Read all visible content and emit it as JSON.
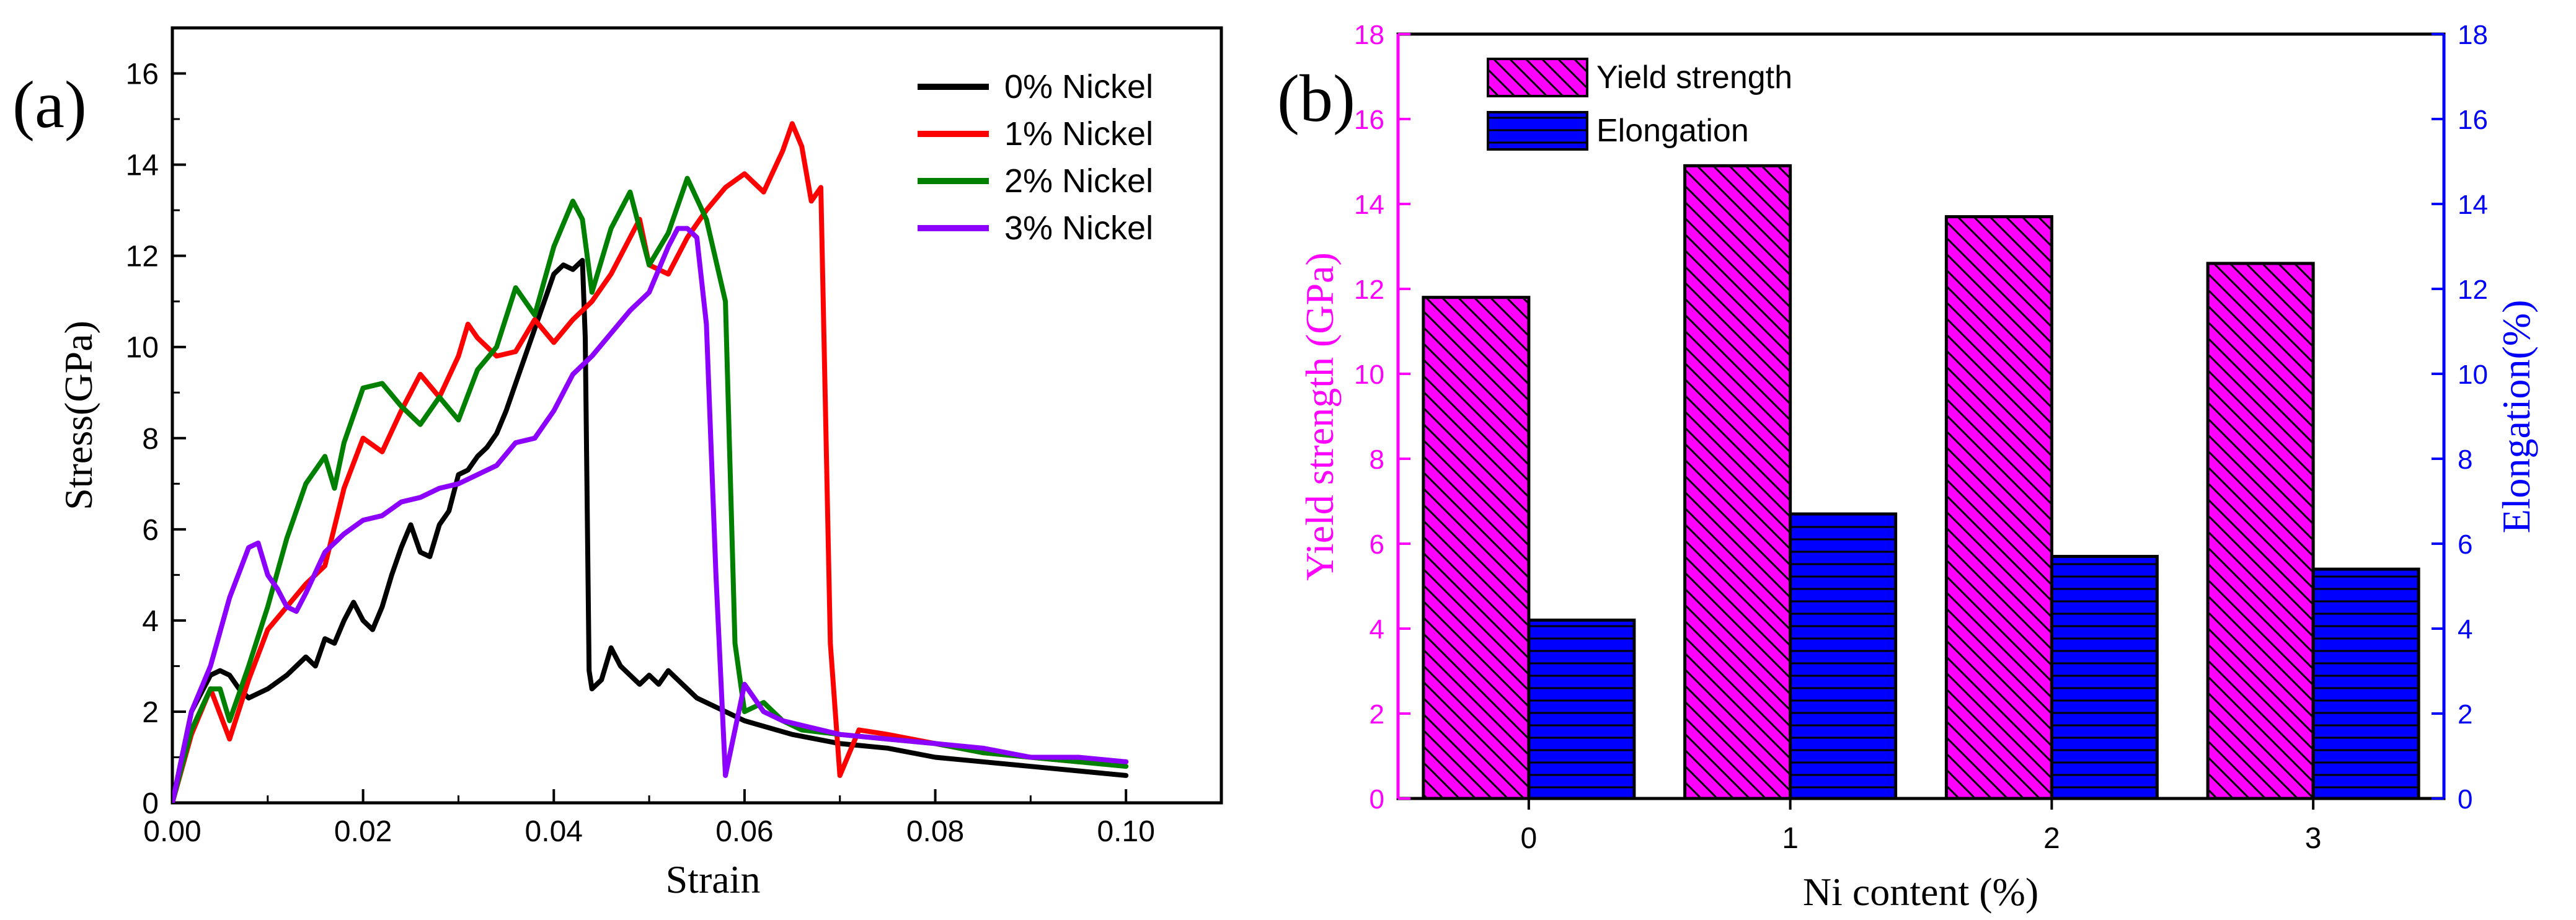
{
  "panel_a": {
    "label": "(a)",
    "chart_data": {
      "type": "line",
      "title": "",
      "xlabel": "Strain",
      "ylabel": "Stress(GPa)",
      "xlim": [
        0,
        0.11
      ],
      "ylim": [
        0,
        17
      ],
      "xticks": [
        "0.00",
        "0.02",
        "0.04",
        "0.06",
        "0.08",
        "0.10"
      ],
      "xtick_values": [
        0,
        0.02,
        0.04,
        0.06,
        0.08,
        0.1
      ],
      "yticks": [
        "0",
        "2",
        "4",
        "6",
        "8",
        "10",
        "12",
        "14",
        "16"
      ],
      "ytick_values": [
        0,
        2,
        4,
        6,
        8,
        10,
        12,
        14,
        16
      ],
      "legend_position": "top-right",
      "series": [
        {
          "name": "0% Nickel",
          "color": "#000000",
          "x": [
            0,
            0.002,
            0.004,
            0.005,
            0.006,
            0.007,
            0.008,
            0.01,
            0.012,
            0.014,
            0.015,
            0.016,
            0.017,
            0.018,
            0.019,
            0.02,
            0.021,
            0.022,
            0.023,
            0.024,
            0.025,
            0.026,
            0.027,
            0.028,
            0.029,
            0.03,
            0.031,
            0.032,
            0.033,
            0.034,
            0.035,
            0.036,
            0.037,
            0.038,
            0.039,
            0.04,
            0.041,
            0.042,
            0.043,
            0.0433,
            0.0437,
            0.044,
            0.045,
            0.046,
            0.047,
            0.048,
            0.049,
            0.05,
            0.051,
            0.052,
            0.053,
            0.054,
            0.055,
            0.056,
            0.058,
            0.06,
            0.065,
            0.07,
            0.075,
            0.08,
            0.085,
            0.09,
            0.095,
            0.1
          ],
          "y": [
            0,
            2.0,
            2.8,
            2.9,
            2.8,
            2.5,
            2.3,
            2.5,
            2.8,
            3.2,
            3.0,
            3.6,
            3.5,
            4.0,
            4.4,
            4.0,
            3.8,
            4.3,
            5.0,
            5.6,
            6.1,
            5.5,
            5.4,
            6.1,
            6.4,
            7.2,
            7.3,
            7.6,
            7.8,
            8.1,
            8.6,
            9.2,
            9.8,
            10.4,
            11.0,
            11.6,
            11.8,
            11.7,
            11.9,
            10.2,
            2.9,
            2.5,
            2.7,
            3.4,
            3.0,
            2.8,
            2.6,
            2.8,
            2.6,
            2.9,
            2.7,
            2.5,
            2.3,
            2.2,
            2.0,
            1.8,
            1.5,
            1.3,
            1.2,
            1.0,
            0.9,
            0.8,
            0.7,
            0.6
          ]
        },
        {
          "name": "1% Nickel",
          "color": "#ff0000",
          "x": [
            0,
            0.002,
            0.004,
            0.006,
            0.008,
            0.01,
            0.012,
            0.014,
            0.016,
            0.018,
            0.02,
            0.022,
            0.024,
            0.026,
            0.028,
            0.03,
            0.031,
            0.032,
            0.034,
            0.036,
            0.038,
            0.04,
            0.042,
            0.044,
            0.046,
            0.048,
            0.049,
            0.05,
            0.052,
            0.054,
            0.056,
            0.058,
            0.06,
            0.062,
            0.064,
            0.065,
            0.066,
            0.067,
            0.068,
            0.069,
            0.07,
            0.072,
            0.075,
            0.08,
            0.085,
            0.09,
            0.095,
            0.1
          ],
          "y": [
            0,
            1.5,
            2.5,
            1.4,
            2.7,
            3.8,
            4.3,
            4.8,
            5.2,
            6.9,
            8.0,
            7.7,
            8.6,
            9.4,
            8.9,
            9.8,
            10.5,
            10.2,
            9.8,
            9.9,
            10.6,
            10.1,
            10.6,
            11.0,
            11.6,
            12.4,
            12.8,
            11.8,
            11.6,
            12.4,
            13.0,
            13.5,
            13.8,
            13.4,
            14.3,
            14.9,
            14.4,
            13.2,
            13.5,
            3.5,
            0.6,
            1.6,
            1.5,
            1.3,
            1.1,
            1.0,
            0.9,
            0.9
          ]
        },
        {
          "name": "2% Nickel",
          "color": "#008000",
          "x": [
            0,
            0.002,
            0.004,
            0.005,
            0.006,
            0.008,
            0.01,
            0.012,
            0.014,
            0.016,
            0.017,
            0.018,
            0.02,
            0.022,
            0.024,
            0.026,
            0.028,
            0.03,
            0.032,
            0.034,
            0.036,
            0.038,
            0.04,
            0.042,
            0.043,
            0.044,
            0.046,
            0.048,
            0.05,
            0.052,
            0.054,
            0.056,
            0.058,
            0.059,
            0.06,
            0.062,
            0.064,
            0.066,
            0.07,
            0.075,
            0.08,
            0.085,
            0.09,
            0.095,
            0.1
          ],
          "y": [
            0,
            1.6,
            2.5,
            2.5,
            1.8,
            3.0,
            4.3,
            5.8,
            7.0,
            7.6,
            6.9,
            7.9,
            9.1,
            9.2,
            8.7,
            8.3,
            8.9,
            8.4,
            9.5,
            10.0,
            11.3,
            10.7,
            12.2,
            13.2,
            12.8,
            11.2,
            12.6,
            13.4,
            11.8,
            12.5,
            13.7,
            12.8,
            11.0,
            3.5,
            2.0,
            2.2,
            1.8,
            1.6,
            1.5,
            1.4,
            1.3,
            1.1,
            1.0,
            0.9,
            0.8
          ]
        },
        {
          "name": "3% Nickel",
          "color": "#8b00ff",
          "x": [
            0,
            0.002,
            0.004,
            0.006,
            0.008,
            0.009,
            0.01,
            0.011,
            0.012,
            0.013,
            0.014,
            0.016,
            0.018,
            0.02,
            0.022,
            0.024,
            0.026,
            0.028,
            0.03,
            0.032,
            0.034,
            0.036,
            0.038,
            0.04,
            0.042,
            0.044,
            0.046,
            0.048,
            0.05,
            0.052,
            0.053,
            0.054,
            0.055,
            0.056,
            0.057,
            0.058,
            0.06,
            0.062,
            0.064,
            0.066,
            0.07,
            0.075,
            0.08,
            0.085,
            0.09,
            0.095,
            0.1
          ],
          "y": [
            0,
            2.0,
            3.0,
            4.5,
            5.6,
            5.7,
            5.0,
            4.7,
            4.3,
            4.2,
            4.6,
            5.5,
            5.9,
            6.2,
            6.3,
            6.6,
            6.7,
            6.9,
            7.0,
            7.2,
            7.4,
            7.9,
            8.0,
            8.6,
            9.4,
            9.8,
            10.3,
            10.8,
            11.2,
            12.2,
            12.6,
            12.6,
            12.4,
            10.5,
            5.0,
            0.6,
            2.6,
            2.0,
            1.8,
            1.7,
            1.5,
            1.4,
            1.3,
            1.2,
            1.0,
            1.0,
            0.9
          ]
        }
      ]
    }
  },
  "panel_b": {
    "label": "(b)",
    "chart_data": {
      "type": "bar",
      "title": "",
      "categories": [
        "0",
        "1",
        "2",
        "3"
      ],
      "xlabel": "Ni content (%)",
      "ylabel": "Yield strength (GPa)",
      "y2label": "Elongation(%)",
      "ylim": [
        0,
        18
      ],
      "y2lim": [
        0,
        18
      ],
      "yticks": [
        "0",
        "2",
        "4",
        "6",
        "8",
        "10",
        "12",
        "14",
        "16",
        "18"
      ],
      "ytick_values": [
        0,
        2,
        4,
        6,
        8,
        10,
        12,
        14,
        16,
        18
      ],
      "left_axis_color": "#ff00ff",
      "right_axis_color": "#0000ff",
      "legend_position": "top-left",
      "series": [
        {
          "name": "Yield strength",
          "color": "#ff00ff",
          "pattern": "diagonal-hatch",
          "axis": "left",
          "values": [
            11.8,
            14.9,
            13.7,
            12.6
          ]
        },
        {
          "name": "Elongation",
          "color": "#0000ff",
          "pattern": "horizontal-hatch",
          "axis": "right",
          "values": [
            4.2,
            6.7,
            5.7,
            5.4
          ]
        }
      ]
    }
  }
}
